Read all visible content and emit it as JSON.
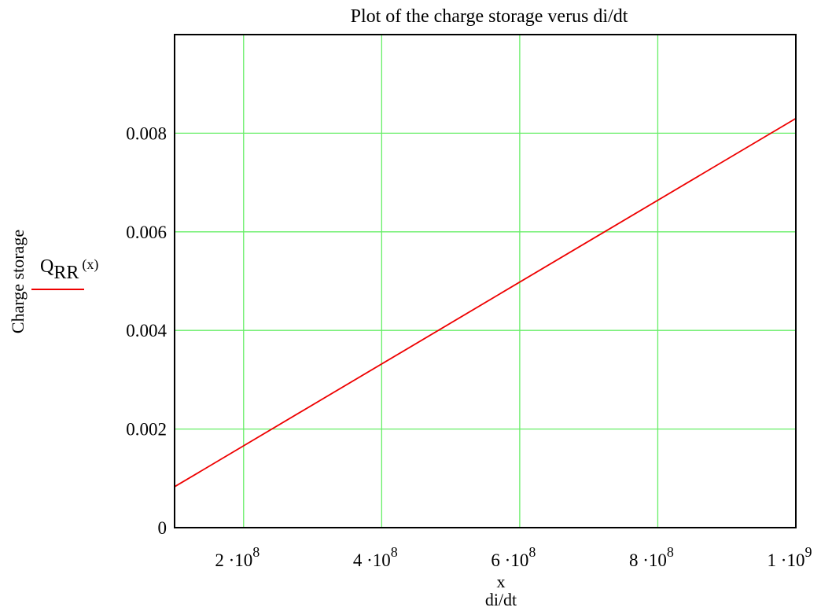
{
  "chart_data": {
    "type": "line",
    "title": "Plot of the charge storage verus di/dt",
    "xlabel_var": "x",
    "xlabel": "di/dt",
    "ylabel": "Charge storage",
    "xlim": [
      100000000,
      1000000000
    ],
    "ylim": [
      0,
      0.01
    ],
    "x_ticks": [
      {
        "value": 200000000,
        "base": "2 ·10",
        "exp": "8"
      },
      {
        "value": 400000000,
        "base": "4 ·10",
        "exp": "8"
      },
      {
        "value": 600000000,
        "base": "6 ·10",
        "exp": "8"
      },
      {
        "value": 800000000,
        "base": "8 ·10",
        "exp": "8"
      },
      {
        "value": 1000000000,
        "base": "1 ·10",
        "exp": "9"
      }
    ],
    "y_ticks": [
      {
        "value": 0,
        "label": "0"
      },
      {
        "value": 0.002,
        "label": "0.002"
      },
      {
        "value": 0.004,
        "label": "0.004"
      },
      {
        "value": 0.006,
        "label": "0.006"
      },
      {
        "value": 0.008,
        "label": "0.008"
      }
    ],
    "grid": true,
    "grid_color": "#66ee66",
    "legend": {
      "placement": "left",
      "entries": [
        {
          "main": "Q",
          "sub": "RR",
          "arg": "(x)",
          "color": "#ee0000"
        }
      ]
    },
    "series": [
      {
        "color": "#ee0000",
        "x": [
          100000000,
          1000000000
        ],
        "y": [
          0.00083,
          0.0083
        ]
      }
    ]
  }
}
